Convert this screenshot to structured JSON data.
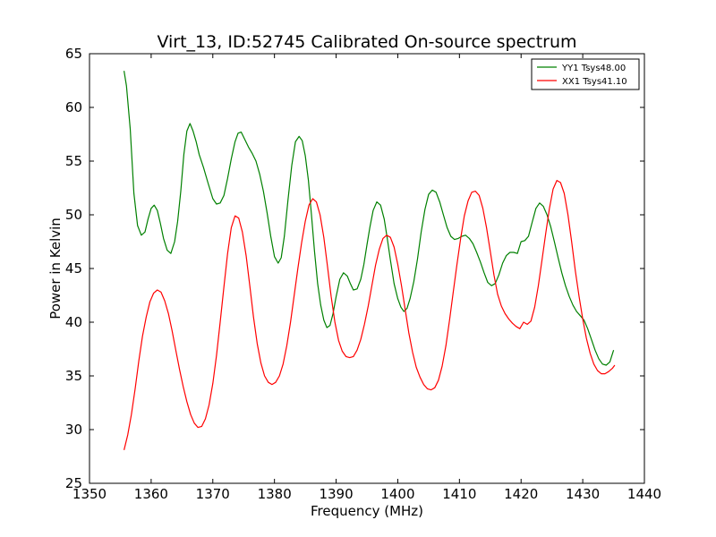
{
  "chart_data": {
    "type": "line",
    "title": "Virt_13, ID:52745 Calibrated On-source spectrum",
    "xlabel": "Frequency (MHz)",
    "ylabel": "Power in Kelvin",
    "xlim": [
      1350,
      1440
    ],
    "ylim": [
      25,
      65
    ],
    "xticks": [
      1350,
      1360,
      1370,
      1380,
      1390,
      1400,
      1410,
      1420,
      1430,
      1440
    ],
    "yticks": [
      25,
      30,
      35,
      40,
      45,
      50,
      55,
      60,
      65
    ],
    "grid": false,
    "legend_position": "top-right",
    "series": [
      {
        "name": "YY1 Tsys48.00",
        "color": "#008000",
        "x": [
          1355.6,
          1356.0,
          1356.6,
          1357.2,
          1357.8,
          1358.4,
          1359.0,
          1359.5,
          1360.0,
          1360.5,
          1361.0,
          1361.5,
          1362.0,
          1362.6,
          1363.2,
          1363.8,
          1364.3,
          1364.8,
          1365.3,
          1365.8,
          1366.3,
          1366.8,
          1367.3,
          1367.8,
          1368.5,
          1369.2,
          1370.0,
          1370.6,
          1371.2,
          1371.8,
          1372.4,
          1373.0,
          1373.6,
          1374.1,
          1374.6,
          1375.2,
          1375.8,
          1376.4,
          1377.0,
          1377.6,
          1378.2,
          1378.8,
          1379.4,
          1380.0,
          1380.6,
          1381.1,
          1381.6,
          1382.2,
          1382.8,
          1383.4,
          1384.0,
          1384.5,
          1385.0,
          1385.5,
          1386.0,
          1386.5,
          1387.0,
          1387.5,
          1388.0,
          1388.5,
          1389.0,
          1389.5,
          1390.0,
          1390.6,
          1391.2,
          1391.8,
          1392.3,
          1392.8,
          1393.4,
          1394.0,
          1394.5,
          1395.0,
          1395.5,
          1396.0,
          1396.6,
          1397.2,
          1397.8,
          1398.3,
          1398.8,
          1399.4,
          1400.0,
          1400.5,
          1401.0,
          1401.5,
          1402.0,
          1402.6,
          1403.2,
          1403.8,
          1404.4,
          1405.0,
          1405.6,
          1406.2,
          1406.8,
          1407.4,
          1408.0,
          1408.6,
          1409.2,
          1409.8,
          1410.4,
          1411.0,
          1411.6,
          1412.2,
          1412.8,
          1413.4,
          1414.0,
          1414.6,
          1415.2,
          1415.8,
          1416.4,
          1417.0,
          1417.6,
          1418.2,
          1418.8,
          1419.4,
          1420.0,
          1420.6,
          1421.2,
          1421.8,
          1422.4,
          1423.0,
          1423.6,
          1424.2,
          1424.8,
          1425.4,
          1426.0,
          1426.6,
          1427.2,
          1427.8,
          1428.4,
          1429.0,
          1429.6,
          1430.2,
          1430.8,
          1431.4,
          1432.0,
          1432.6,
          1433.2,
          1433.8,
          1434.4,
          1435.0
        ],
        "values": [
          63.4,
          62.0,
          58.0,
          52.0,
          49.0,
          48.1,
          48.4,
          49.6,
          50.6,
          50.9,
          50.4,
          49.2,
          47.8,
          46.7,
          46.4,
          47.5,
          49.4,
          52.2,
          55.6,
          57.8,
          58.5,
          57.8,
          56.8,
          55.6,
          54.4,
          53.0,
          51.5,
          51.0,
          51.1,
          51.8,
          53.4,
          55.2,
          56.8,
          57.6,
          57.7,
          57.0,
          56.3,
          55.7,
          55.0,
          53.8,
          52.2,
          50.2,
          48.0,
          46.1,
          45.5,
          46.0,
          48.0,
          51.4,
          54.6,
          56.8,
          57.3,
          56.9,
          55.5,
          53.2,
          50.0,
          46.6,
          43.6,
          41.6,
          40.2,
          39.5,
          39.7,
          40.8,
          42.4,
          44.0,
          44.6,
          44.3,
          43.6,
          43.0,
          43.1,
          44.0,
          45.4,
          47.2,
          48.9,
          50.4,
          51.2,
          50.9,
          49.6,
          47.8,
          45.8,
          43.6,
          42.2,
          41.4,
          41.0,
          41.3,
          42.2,
          43.8,
          45.9,
          48.4,
          50.5,
          51.9,
          52.3,
          52.1,
          51.2,
          50.0,
          48.8,
          48.0,
          47.7,
          47.8,
          48.0,
          48.1,
          47.8,
          47.3,
          46.5,
          45.6,
          44.6,
          43.7,
          43.4,
          43.6,
          44.4,
          45.5,
          46.2,
          46.5,
          46.5,
          46.4,
          47.5,
          47.6,
          48.0,
          49.3,
          50.6,
          51.1,
          50.8,
          50.0,
          48.9,
          47.5,
          46.0,
          44.6,
          43.4,
          42.4,
          41.6,
          41.0,
          40.6,
          40.2,
          39.4,
          38.4,
          37.4,
          36.6,
          36.1,
          36.0,
          36.3,
          37.4
        ]
      },
      {
        "name": "XX1 Tsys41.10",
        "color": "#ff0000",
        "x": [
          1355.6,
          1356.2,
          1356.8,
          1357.4,
          1358.0,
          1358.6,
          1359.2,
          1359.8,
          1360.4,
          1361.0,
          1361.6,
          1362.2,
          1362.8,
          1363.4,
          1364.0,
          1364.6,
          1365.2,
          1365.8,
          1366.4,
          1367.0,
          1367.6,
          1368.2,
          1368.8,
          1369.4,
          1370.0,
          1370.6,
          1371.2,
          1371.8,
          1372.4,
          1373.0,
          1373.6,
          1374.2,
          1374.8,
          1375.4,
          1376.0,
          1376.6,
          1377.2,
          1377.8,
          1378.4,
          1379.0,
          1379.6,
          1380.2,
          1380.8,
          1381.4,
          1382.0,
          1382.6,
          1383.2,
          1383.8,
          1384.4,
          1385.0,
          1385.6,
          1386.2,
          1386.8,
          1387.4,
          1388.0,
          1388.6,
          1389.2,
          1389.8,
          1390.4,
          1391.0,
          1391.6,
          1392.2,
          1392.8,
          1393.4,
          1394.0,
          1394.6,
          1395.2,
          1395.8,
          1396.4,
          1397.0,
          1397.6,
          1398.2,
          1398.8,
          1399.4,
          1400.0,
          1400.6,
          1401.2,
          1401.8,
          1402.4,
          1403.0,
          1403.6,
          1404.2,
          1404.8,
          1405.4,
          1406.0,
          1406.6,
          1407.2,
          1407.8,
          1408.4,
          1409.0,
          1409.6,
          1410.2,
          1410.8,
          1411.4,
          1412.0,
          1412.6,
          1413.2,
          1413.8,
          1414.4,
          1415.0,
          1415.6,
          1416.2,
          1416.8,
          1417.4,
          1418.0,
          1418.6,
          1419.2,
          1419.8,
          1420.4,
          1421.0,
          1421.6,
          1422.2,
          1422.8,
          1423.4,
          1424.0,
          1424.6,
          1425.2,
          1425.8,
          1426.4,
          1427.0,
          1427.6,
          1428.2,
          1428.8,
          1429.4,
          1430.0,
          1430.6,
          1431.2,
          1431.8,
          1432.4,
          1433.0,
          1433.6,
          1434.2,
          1434.8,
          1435.2
        ],
        "values": [
          28.1,
          29.5,
          31.4,
          33.8,
          36.4,
          38.7,
          40.5,
          41.9,
          42.7,
          43.0,
          42.8,
          42.0,
          40.8,
          39.2,
          37.4,
          35.6,
          34.0,
          32.6,
          31.4,
          30.6,
          30.2,
          30.3,
          31.0,
          32.3,
          34.3,
          36.9,
          40.0,
          43.3,
          46.4,
          48.8,
          49.9,
          49.7,
          48.4,
          46.2,
          43.4,
          40.5,
          38.0,
          36.2,
          35.0,
          34.4,
          34.2,
          34.4,
          35.0,
          36.1,
          37.8,
          40.0,
          42.5,
          45.0,
          47.4,
          49.4,
          50.9,
          51.5,
          51.2,
          50.0,
          47.9,
          45.2,
          42.4,
          40.0,
          38.3,
          37.3,
          36.8,
          36.7,
          36.8,
          37.4,
          38.4,
          39.8,
          41.5,
          43.4,
          45.3,
          46.8,
          47.8,
          48.1,
          47.9,
          47.0,
          45.4,
          43.4,
          41.2,
          39.0,
          37.2,
          35.8,
          34.9,
          34.2,
          33.8,
          33.7,
          33.9,
          34.6,
          35.9,
          37.8,
          40.2,
          42.8,
          45.4,
          47.8,
          49.9,
          51.3,
          52.1,
          52.2,
          51.8,
          50.6,
          48.8,
          46.6,
          44.4,
          42.6,
          41.5,
          40.8,
          40.3,
          39.9,
          39.6,
          39.4,
          40.0,
          39.8,
          40.1,
          41.4,
          43.4,
          45.8,
          48.3,
          50.6,
          52.4,
          53.2,
          53.0,
          52.0,
          50.0,
          47.5,
          44.8,
          42.4,
          40.3,
          38.5,
          37.1,
          36.1,
          35.5,
          35.2,
          35.2,
          35.4,
          35.7,
          36.0
        ]
      }
    ]
  }
}
